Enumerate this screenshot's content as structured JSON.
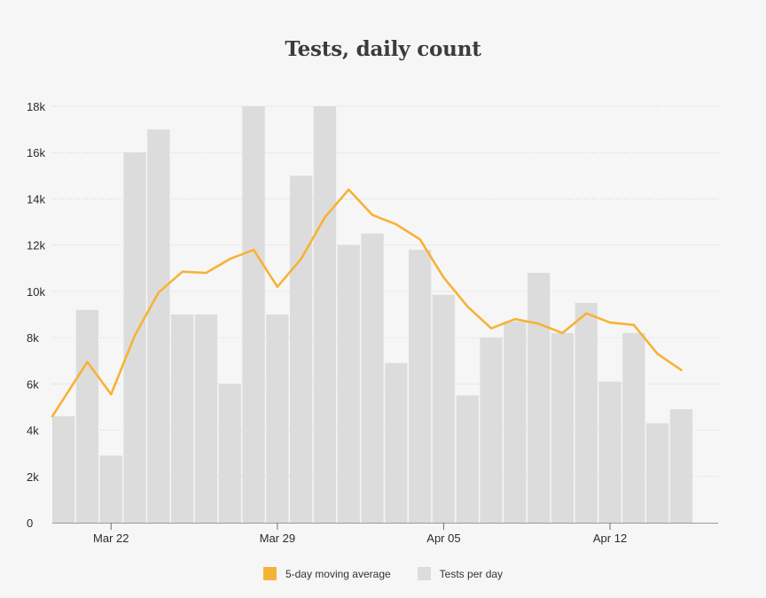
{
  "chart_data": {
    "type": "bar",
    "title": "Tests, daily count",
    "xlabel": "",
    "ylabel": "",
    "ylim": [
      0,
      18000
    ],
    "y_ticks": [
      0,
      2000,
      4000,
      6000,
      8000,
      10000,
      12000,
      14000,
      16000,
      18000
    ],
    "y_tick_labels": [
      "0",
      "2k",
      "4k",
      "6k",
      "8k",
      "10k",
      "12k",
      "14k",
      "16k",
      "18k"
    ],
    "x_tick_labels": [
      {
        "label": "Mar 22",
        "date": "2020-03-22"
      },
      {
        "label": "Mar 29",
        "date": "2020-03-29"
      },
      {
        "label": "Apr 05",
        "date": "2020-04-05"
      },
      {
        "label": "Apr 12",
        "date": "2020-04-12"
      }
    ],
    "categories": [
      "2020-03-20",
      "2020-03-21",
      "2020-03-22",
      "2020-03-23",
      "2020-03-24",
      "2020-03-25",
      "2020-03-26",
      "2020-03-27",
      "2020-03-28",
      "2020-03-29",
      "2020-03-30",
      "2020-03-31",
      "2020-04-01",
      "2020-04-02",
      "2020-04-03",
      "2020-04-04",
      "2020-04-05",
      "2020-04-06",
      "2020-04-07",
      "2020-04-08",
      "2020-04-09",
      "2020-04-10",
      "2020-04-11",
      "2020-04-12",
      "2020-04-13",
      "2020-04-14",
      "2020-04-15"
    ],
    "series": [
      {
        "name": "Tests per day",
        "type": "bar",
        "color": "#dddcdd",
        "values": [
          4600,
          9200,
          2900,
          16000,
          17000,
          9000,
          9000,
          6000,
          18000,
          9000,
          15000,
          18000,
          12000,
          12500,
          6900,
          11800,
          9850,
          5500,
          8000,
          8700,
          10800,
          8200,
          9500,
          6100,
          8200,
          4300,
          4900
        ]
      },
      {
        "name": "5-day moving average",
        "type": "line",
        "color": "#f5b335",
        "values": [
          4600,
          6950,
          5550,
          8100,
          9950,
          10850,
          10800,
          11400,
          11800,
          10200,
          11400,
          13200,
          14400,
          13300,
          12900,
          12250,
          10600,
          9350,
          8400,
          8800,
          8600,
          8200,
          9050,
          8650,
          8550,
          7300,
          6600
        ]
      }
    ],
    "grid": true,
    "legend": {
      "position": "bottom-center",
      "items": [
        {
          "label": "5-day moving average",
          "color": "#f5b335"
        },
        {
          "label": "Tests per day",
          "color": "#dddcdd"
        }
      ]
    }
  }
}
